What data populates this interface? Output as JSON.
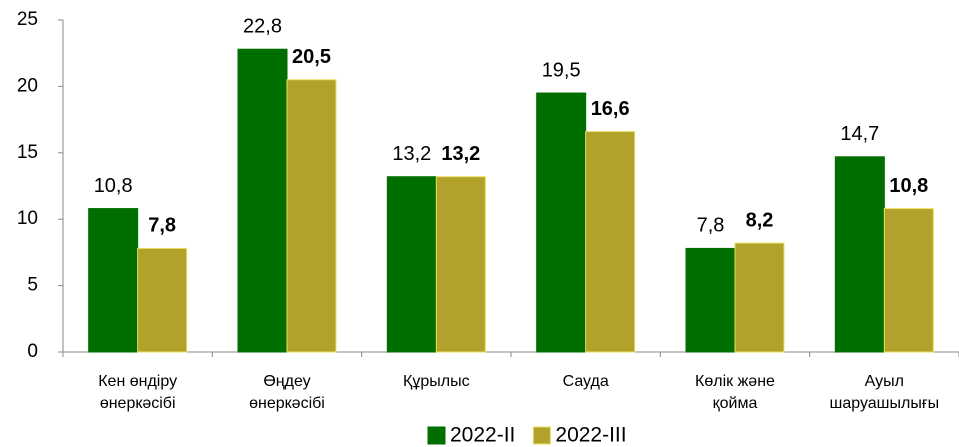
{
  "chart_data": {
    "type": "bar",
    "categories": [
      [
        "Кен өндіру",
        "өнеркәсібі"
      ],
      [
        "Өңдеу",
        "өнеркәсібі"
      ],
      [
        "Құрылыс"
      ],
      [
        "Сауда"
      ],
      [
        "Көлік және",
        "қойма"
      ],
      [
        "Ауыл",
        "шаруашылығы"
      ]
    ],
    "series": [
      {
        "name": "2022-II",
        "color": "#006f00",
        "border": "#006f00",
        "label_bold": false,
        "values": [
          10.8,
          22.8,
          13.2,
          19.5,
          7.8,
          14.7
        ],
        "value_labels": [
          "10,8",
          "22,8",
          "13,2",
          "19,5",
          "7,8",
          "14,7"
        ]
      },
      {
        "name": "2022-III",
        "color": "#b2a22b",
        "border": "#e8e060",
        "label_bold": true,
        "values": [
          7.8,
          20.5,
          13.2,
          16.6,
          8.2,
          10.8
        ],
        "value_labels": [
          "7,8",
          "20,5",
          "13,2",
          "16,6",
          "8,2",
          "10,8"
        ]
      }
    ],
    "ylim": [
      0,
      25
    ],
    "yticks": [
      0,
      5,
      10,
      15,
      20,
      25
    ],
    "grid": false,
    "legend": "bottom"
  }
}
